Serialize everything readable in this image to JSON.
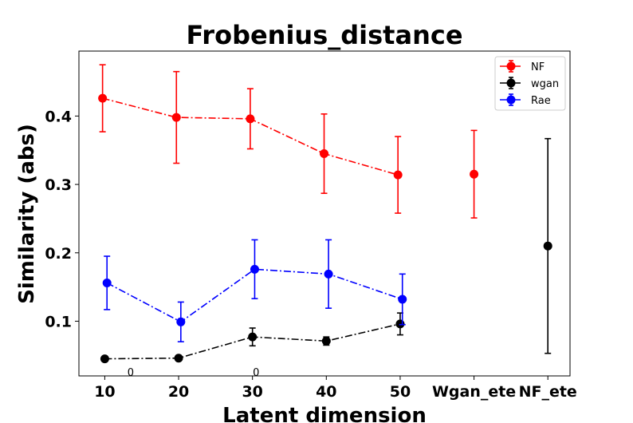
{
  "chart_data": {
    "type": "line",
    "title": "Frobenius_distance",
    "xlabel": "Latent dimension",
    "ylabel": "Similarity (abs)",
    "categories": [
      "10",
      "20",
      "30",
      "40",
      "50",
      "Wgan_ete",
      "NF_ete"
    ],
    "xlim": [
      0.65,
      7.3
    ],
    "ylim": [
      0.02,
      0.495
    ],
    "yticks": [
      0.1,
      0.2,
      0.3,
      0.4
    ],
    "ytick_labels": [
      "0.1",
      "0.2",
      "0.3",
      "0.4"
    ],
    "grid": false,
    "legend_position": "top-right",
    "series": [
      {
        "name": "NF",
        "color": "#ff0000",
        "linestyle": "dashdot",
        "points": [
          {
            "x": 0.97,
            "y": 0.426,
            "err": 0.049
          },
          {
            "x": 1.97,
            "y": 0.398,
            "err": 0.067
          },
          {
            "x": 2.97,
            "y": 0.396,
            "err": 0.044
          },
          {
            "x": 3.97,
            "y": 0.345,
            "err": 0.058
          },
          {
            "x": 4.97,
            "y": 0.314,
            "err": 0.056
          },
          {
            "x": 6.0,
            "y": 0.315,
            "err": 0.064,
            "connected": false
          }
        ]
      },
      {
        "name": "wgan",
        "color": "#000000",
        "linestyle": "dashdot",
        "points": [
          {
            "x": 1.0,
            "y": 0.045,
            "err": 0.0
          },
          {
            "x": 2.0,
            "y": 0.046,
            "err": 0.0
          },
          {
            "x": 3.0,
            "y": 0.077,
            "err": 0.013
          },
          {
            "x": 4.0,
            "y": 0.071,
            "err": 0.006
          },
          {
            "x": 5.0,
            "y": 0.096,
            "err": 0.016
          },
          {
            "x": 7.0,
            "y": 0.21,
            "err": 0.157,
            "connected": false
          }
        ]
      },
      {
        "name": "Rae",
        "color": "#0000ff",
        "linestyle": "dashdot",
        "points": [
          {
            "x": 1.03,
            "y": 0.156,
            "err": 0.039
          },
          {
            "x": 2.03,
            "y": 0.099,
            "err": 0.029
          },
          {
            "x": 3.03,
            "y": 0.176,
            "err": 0.043
          },
          {
            "x": 4.03,
            "y": 0.169,
            "err": 0.05
          },
          {
            "x": 5.03,
            "y": 0.132,
            "err": 0.037
          }
        ]
      }
    ],
    "annotations": [
      {
        "text": "0",
        "x": 1.35,
        "y": 0.026
      },
      {
        "text": "0",
        "x": 3.05,
        "y": 0.026
      }
    ]
  }
}
